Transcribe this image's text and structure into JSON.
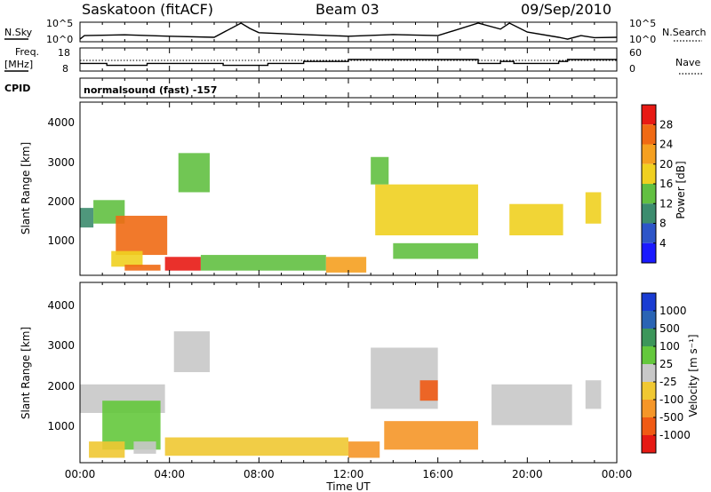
{
  "header": {
    "title": "Saskatoon (fitACF)",
    "beam": "Beam 03",
    "date": "09/Sep/2010"
  },
  "noise_panel": {
    "left_label": "N.Sky",
    "left_ticks": [
      "10^5",
      "10^0"
    ],
    "right_label": "N.Search",
    "right_ticks": [
      "10^5",
      "10^0"
    ]
  },
  "freq_panel": {
    "left_label_1": "Freq.",
    "left_label_2": "[MHz]",
    "left_ticks": [
      "18",
      "8"
    ],
    "right_label": "Nave",
    "right_ticks": [
      "60",
      "0"
    ]
  },
  "cpid": {
    "label": "CPID",
    "value": "normalsound (fast) -157"
  },
  "power_panel": {
    "ylabel": "Slant Range [km]",
    "yticks": [
      "1000",
      "2000",
      "3000",
      "4000"
    ],
    "colorbar_label": "Power [dB]",
    "colorbar_ticks": [
      "4",
      "8",
      "12",
      "16",
      "20",
      "24",
      "28"
    ],
    "colors": [
      "#1a1aff",
      "#2d55c8",
      "#3c8c6e",
      "#62c041",
      "#f0d020",
      "#f5a020",
      "#f06a14",
      "#e81a14"
    ]
  },
  "velocity_panel": {
    "ylabel": "Slant Range [km]",
    "yticks": [
      "1000",
      "2000",
      "3000",
      "4000"
    ],
    "colorbar_label": "Velocity [m s⁻¹]",
    "colorbar_ticks": [
      "1000",
      "500",
      "100",
      "25",
      "-25",
      "-100",
      "-500",
      "-1000"
    ],
    "colors": [
      "#1a3cd2",
      "#2a64b4",
      "#3c965a",
      "#64c83c",
      "#c8c8c8",
      "#f0c832",
      "#f59628",
      "#f05a14",
      "#e61a14"
    ]
  },
  "xaxis": {
    "label": "Time UT",
    "ticks": [
      "00:00",
      "04:00",
      "08:00",
      "12:00",
      "16:00",
      "20:00",
      "00:00"
    ]
  },
  "chart_data": [
    {
      "type": "heatmap",
      "title": "Saskatoon (fitACF) Beam 03 09/Sep/2010",
      "quantity": "Power",
      "unit": "dB",
      "xlabel": "Time UT",
      "ylabel": "Slant Range [km]",
      "xlim": [
        0,
        24
      ],
      "ylim": [
        180,
        4600
      ],
      "color_range": [
        0,
        30
      ],
      "patches": [
        {
          "t": [
            0.0,
            0.6
          ],
          "r": [
            1400,
            1900
          ],
          "value": 10
        },
        {
          "t": [
            0.6,
            2.0
          ],
          "r": [
            1500,
            2100
          ],
          "value": 14
        },
        {
          "t": [
            1.6,
            3.9
          ],
          "r": [
            700,
            1700
          ],
          "value": 26
        },
        {
          "t": [
            1.4,
            2.8
          ],
          "r": [
            400,
            800
          ],
          "value": 16
        },
        {
          "t": [
            2.0,
            3.6
          ],
          "r": [
            300,
            450
          ],
          "value": 24
        },
        {
          "t": [
            3.8,
            5.4
          ],
          "r": [
            300,
            650
          ],
          "value": 27
        },
        {
          "t": [
            4.4,
            5.8
          ],
          "r": [
            2300,
            3300
          ],
          "value": 12
        },
        {
          "t": [
            5.4,
            11.0
          ],
          "r": [
            300,
            700
          ],
          "value": 14
        },
        {
          "t": [
            11.0,
            12.8
          ],
          "r": [
            250,
            650
          ],
          "value": 20
        },
        {
          "t": [
            13.2,
            17.8
          ],
          "r": [
            1200,
            2500
          ],
          "value": 18
        },
        {
          "t": [
            13.0,
            13.8
          ],
          "r": [
            2500,
            3200
          ],
          "value": 12
        },
        {
          "t": [
            14.0,
            17.8
          ],
          "r": [
            600,
            1000
          ],
          "value": 14
        },
        {
          "t": [
            19.2,
            21.6
          ],
          "r": [
            1200,
            2000
          ],
          "value": 16
        },
        {
          "t": [
            22.6,
            23.3
          ],
          "r": [
            1500,
            2300
          ],
          "value": 18
        }
      ]
    },
    {
      "type": "heatmap",
      "title": "Saskatoon (fitACF) Beam 03 09/Sep/2010",
      "quantity": "Velocity",
      "unit": "m s^-1",
      "xlabel": "Time UT",
      "ylabel": "Slant Range [km]",
      "xlim": [
        0,
        24
      ],
      "ylim": [
        180,
        4600
      ],
      "color_range": [
        -1000,
        1000
      ],
      "patches": [
        {
          "t": [
            0.0,
            3.8
          ],
          "r": [
            1400,
            2100
          ],
          "value": 0
        },
        {
          "t": [
            1.0,
            3.6
          ],
          "r": [
            500,
            1700
          ],
          "value": 30
        },
        {
          "t": [
            0.4,
            2.0
          ],
          "r": [
            300,
            700
          ],
          "value": -60
        },
        {
          "t": [
            2.4,
            3.4
          ],
          "r": [
            400,
            700
          ],
          "value": 0
        },
        {
          "t": [
            4.2,
            5.8
          ],
          "r": [
            2400,
            3400
          ],
          "value": 0
        },
        {
          "t": [
            3.8,
            12.0
          ],
          "r": [
            350,
            800
          ],
          "value": -80
        },
        {
          "t": [
            12.0,
            13.4
          ],
          "r": [
            300,
            700
          ],
          "value": -150
        },
        {
          "t": [
            13.0,
            16.0
          ],
          "r": [
            1500,
            3000
          ],
          "value": 0
        },
        {
          "t": [
            15.2,
            16.0
          ],
          "r": [
            1700,
            2200
          ],
          "value": -900
        },
        {
          "t": [
            13.6,
            17.8
          ],
          "r": [
            500,
            1200
          ],
          "value": -120
        },
        {
          "t": [
            18.4,
            22.0
          ],
          "r": [
            1100,
            2100
          ],
          "value": 0
        },
        {
          "t": [
            22.6,
            23.3
          ],
          "r": [
            1500,
            2200
          ],
          "value": 0
        }
      ]
    },
    {
      "type": "line",
      "quantity": "N.Sky / N.Search noise",
      "xlim": [
        0,
        24
      ],
      "notes_scale": "log",
      "ylim": [
        1,
        100000
      ],
      "x": [
        0,
        0.2,
        2,
        4,
        6,
        7.2,
        7.6,
        8,
        10,
        12,
        14,
        16,
        17.8,
        18.8,
        19.2,
        20.0,
        21.4,
        21.8,
        22.4,
        23.0,
        24
      ],
      "values": [
        3,
        30,
        50,
        20,
        10,
        100000,
        3000,
        200,
        60,
        20,
        60,
        30,
        100000,
        2000,
        100000,
        300,
        10,
        3,
        30,
        8,
        10
      ]
    },
    {
      "type": "line",
      "quantity": "Freq. [MHz]",
      "xlim": [
        0,
        24
      ],
      "ylim": [
        8,
        18
      ],
      "x": [
        0,
        1.2,
        1.2,
        3.0,
        3.0,
        6.4,
        6.4,
        8.4,
        8.4,
        10.0,
        10.0,
        12.0,
        12.0,
        13.0,
        13.0,
        17.8,
        17.8,
        18.8,
        18.8,
        19.4,
        19.4,
        21.4,
        21.4,
        21.8,
        21.8,
        24
      ],
      "values": [
        11,
        11,
        10,
        10,
        11,
        11,
        10,
        10,
        11,
        11,
        12,
        12,
        13,
        13,
        13,
        13,
        11,
        11,
        12,
        12,
        11,
        11,
        12,
        12,
        13,
        13
      ]
    }
  ]
}
